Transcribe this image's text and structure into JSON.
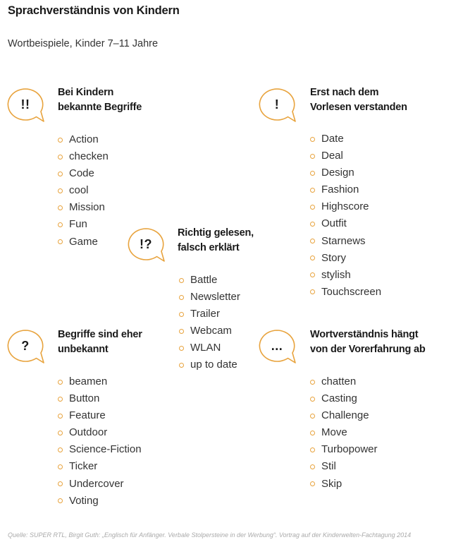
{
  "title": "Sprachverständnis von Kindern",
  "subtitle": "Wortbeispiele, Kinder 7–11 Jahre",
  "accent_color": "#e8a33d",
  "groups": [
    {
      "symbol": "!!",
      "heading_line1": "Bei Kindern",
      "heading_line2": "bekannte Begriffe",
      "items": [
        "Action",
        "checken",
        "Code",
        "cool",
        "Mission",
        "Fun",
        "Game"
      ]
    },
    {
      "symbol": "!",
      "heading_line1": "Erst nach dem",
      "heading_line2": "Vorlesen verstanden",
      "items": [
        "Date",
        "Deal",
        "Design",
        "Fashion",
        "Highscore",
        "Outfit",
        "Starnews",
        "Story",
        "stylish",
        "Touchscreen"
      ]
    },
    {
      "symbol": "!?",
      "heading_line1": "Richtig gelesen,",
      "heading_line2": "falsch erklärt",
      "items": [
        "Battle",
        "Newsletter",
        "Trailer",
        "Webcam",
        "WLAN",
        "up to date"
      ]
    },
    {
      "symbol": "?",
      "heading_line1": "Begriffe sind eher",
      "heading_line2": "unbekannt",
      "items": [
        "beamen",
        "Button",
        "Feature",
        "Outdoor",
        "Science-Fiction",
        "Ticker",
        "Undercover",
        "Voting"
      ]
    },
    {
      "symbol": "...",
      "heading_line1": "Wortverständnis hängt",
      "heading_line2": "von der Vorerfahrung ab",
      "items": [
        "chatten",
        "Casting",
        "Challenge",
        "Move",
        "Turbopower",
        "Stil",
        "Skip"
      ]
    }
  ],
  "source": "Quelle: SUPER RTL, Birgit Guth: „Englisch für Anfänger. Verbale Stolpersteine in der Werbung“. Vortrag auf der Kinderwelten-Fachtagung 2014"
}
